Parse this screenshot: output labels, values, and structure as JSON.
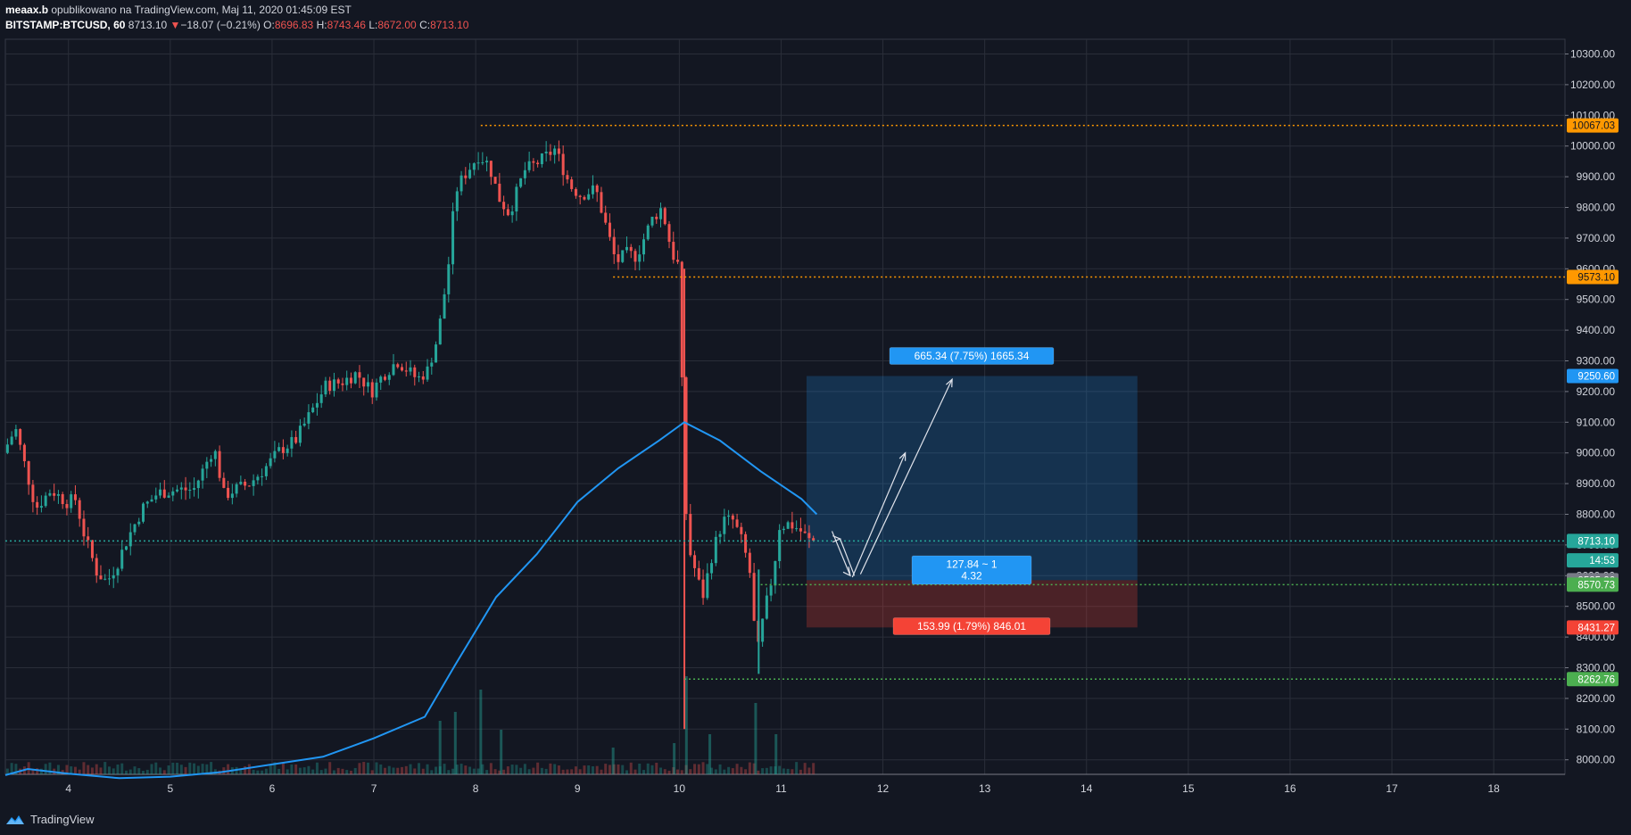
{
  "header": {
    "author": "meaax.b",
    "published": "opublikowano na TradingView.com, Maj 11, 2020 01:45:09 EST",
    "symbol": "BITSTAMP:BTCUSD, 60",
    "last": "8713.10",
    "change_arrow": "▼",
    "change": "−18.07 (−0.21%)",
    "o_label": "O:",
    "o": "8696.83",
    "h_label": "H:",
    "h": "8743.46",
    "l_label": "L:",
    "l": "8672.00",
    "c_label": "C:",
    "c": "8713.10"
  },
  "footer": {
    "brand": "TradingView"
  },
  "colors": {
    "background": "#131722",
    "grid": "#2a2e39",
    "up": "#26a69a",
    "down": "#ef5350",
    "ma": "#2196f3",
    "orange": "#ff9800",
    "green_label": "#4caf50",
    "red_label": "#f44336",
    "blue_label": "#2196f3",
    "current_label": "#26a69a"
  },
  "chart_data": {
    "type": "candlestick",
    "symbol": "BITSTAMP:BTCUSD",
    "interval": "60",
    "x_ticks": [
      "4",
      "5",
      "6",
      "7",
      "8",
      "9",
      "10",
      "11",
      "12",
      "13",
      "14",
      "15",
      "16",
      "17",
      "18"
    ],
    "y_ticks": [
      "10300.00",
      "10200.00",
      "10100.00",
      "10000.00",
      "9900.00",
      "9800.00",
      "9700.00",
      "9600.00",
      "9500.00",
      "9400.00",
      "9300.00",
      "9200.00",
      "9100.00",
      "9000.00",
      "8900.00",
      "8800.00",
      "8700.00",
      "8600.00",
      "8500.00",
      "8400.00",
      "8300.00",
      "8200.00",
      "8100.00",
      "8000.00"
    ],
    "ylim": [
      7920,
      10320
    ],
    "xlim": [
      3.38,
      18.7
    ],
    "price_path": [
      [
        3.38,
        9000
      ],
      [
        3.5,
        9080
      ],
      [
        3.6,
        8950
      ],
      [
        3.7,
        8820
      ],
      [
        3.85,
        8880
      ],
      [
        4.0,
        8840
      ],
      [
        4.1,
        8850
      ],
      [
        4.15,
        8760
      ],
      [
        4.3,
        8610
      ],
      [
        4.4,
        8580
      ],
      [
        4.5,
        8640
      ],
      [
        4.6,
        8720
      ],
      [
        4.75,
        8820
      ],
      [
        4.9,
        8870
      ],
      [
        5.1,
        8880
      ],
      [
        5.25,
        8880
      ],
      [
        5.35,
        8950
      ],
      [
        5.45,
        9020
      ],
      [
        5.55,
        8860
      ],
      [
        5.65,
        8880
      ],
      [
        5.8,
        8900
      ],
      [
        5.95,
        8950
      ],
      [
        6.1,
        9010
      ],
      [
        6.25,
        9040
      ],
      [
        6.4,
        9130
      ],
      [
        6.55,
        9220
      ],
      [
        6.7,
        9230
      ],
      [
        6.85,
        9260
      ],
      [
        7.0,
        9200
      ],
      [
        7.1,
        9250
      ],
      [
        7.25,
        9300
      ],
      [
        7.45,
        9240
      ],
      [
        7.55,
        9270
      ],
      [
        7.65,
        9380
      ],
      [
        7.75,
        9600
      ],
      [
        7.82,
        9850
      ],
      [
        7.9,
        9900
      ],
      [
        8.05,
        9970
      ],
      [
        8.15,
        9940
      ],
      [
        8.25,
        9830
      ],
      [
        8.35,
        9780
      ],
      [
        8.5,
        9920
      ],
      [
        8.65,
        9950
      ],
      [
        8.8,
        9990
      ],
      [
        8.95,
        9870
      ],
      [
        9.05,
        9840
      ],
      [
        9.2,
        9860
      ],
      [
        9.3,
        9740
      ],
      [
        9.4,
        9620
      ],
      [
        9.5,
        9650
      ],
      [
        9.6,
        9640
      ],
      [
        9.75,
        9760
      ],
      [
        9.85,
        9800
      ],
      [
        9.95,
        9650
      ],
      [
        10.03,
        9600
      ],
      [
        10.05,
        9150
      ],
      [
        10.1,
        8700
      ],
      [
        10.15,
        8650
      ],
      [
        10.25,
        8530
      ],
      [
        10.35,
        8680
      ],
      [
        10.45,
        8780
      ],
      [
        10.55,
        8780
      ],
      [
        10.65,
        8700
      ],
      [
        10.72,
        8600
      ],
      [
        10.78,
        8330
      ],
      [
        10.85,
        8470
      ],
      [
        10.95,
        8620
      ],
      [
        11.0,
        8760
      ],
      [
        11.1,
        8770
      ],
      [
        11.2,
        8750
      ],
      [
        11.3,
        8713
      ]
    ],
    "moving_average": [
      [
        3.38,
        8870
      ],
      [
        3.6,
        8890
      ],
      [
        4.0,
        8875
      ],
      [
        4.5,
        8860
      ],
      [
        5.0,
        8865
      ],
      [
        5.5,
        8880
      ],
      [
        6.0,
        8905
      ],
      [
        6.5,
        8930
      ],
      [
        7.0,
        8990
      ],
      [
        7.5,
        9060
      ],
      [
        7.8,
        9230
      ],
      [
        8.2,
        9450
      ],
      [
        8.6,
        9590
      ],
      [
        9.0,
        9760
      ],
      [
        9.4,
        9870
      ],
      [
        9.8,
        9960
      ],
      [
        10.05,
        10020
      ],
      [
        10.4,
        9960
      ],
      [
        10.8,
        9860
      ],
      [
        11.2,
        9770
      ],
      [
        11.35,
        9720
      ]
    ],
    "volume_spikes": [
      [
        7.65,
        60
      ],
      [
        7.8,
        70
      ],
      [
        8.05,
        95
      ],
      [
        8.25,
        50
      ],
      [
        9.35,
        30
      ],
      [
        9.95,
        35
      ],
      [
        10.07,
        110
      ],
      [
        10.3,
        45
      ],
      [
        10.75,
        80
      ],
      [
        10.95,
        45
      ]
    ],
    "horizontal_levels": [
      {
        "price": 10067.03,
        "label": "10067.03",
        "color": "#ff9800",
        "from_x": 8.05
      },
      {
        "price": 9573.1,
        "label": "9573.10",
        "color": "#ff9800",
        "from_x": 9.35
      },
      {
        "price": 8713.1,
        "label": "8713.10",
        "color": "#26a69a",
        "from_x": 3.38
      },
      {
        "price": 8570.73,
        "label": "8570.73",
        "color": "#4caf50",
        "from_x": 10.8
      },
      {
        "price": 8262.76,
        "label": "8262.76",
        "color": "#4caf50",
        "from_x": 10.05
      }
    ],
    "axis_labels": [
      {
        "price": 10067.03,
        "text": "10067.03",
        "bg": "#ff9800",
        "fg": "#131722"
      },
      {
        "price": 9573.1,
        "text": "9573.10",
        "bg": "#ff9800",
        "fg": "#131722"
      },
      {
        "price": 9250.6,
        "text": "9250.60",
        "bg": "#2196f3",
        "fg": "#ffffff"
      },
      {
        "price": 8713.1,
        "text": "8713.10",
        "bg": "#26a69a",
        "fg": "#ffffff"
      },
      {
        "price": 8650.0,
        "text": "14:53",
        "bg": "#26a69a",
        "fg": "#ffffff"
      },
      {
        "price": 8585.26,
        "text": "8585.26",
        "bg": "#787b86",
        "fg": "#ffffff"
      },
      {
        "price": 8570.73,
        "text": "8570.73",
        "bg": "#4caf50",
        "fg": "#ffffff"
      },
      {
        "price": 8431.27,
        "text": "8431.27",
        "bg": "#f44336",
        "fg": "#ffffff"
      },
      {
        "price": 8262.76,
        "text": "8262.76",
        "bg": "#4caf50",
        "fg": "#ffffff"
      }
    ],
    "long_position": {
      "x_from": 11.25,
      "x_to": 14.5,
      "entry": 8585.26,
      "target": 9250.6,
      "stop": 8431.27,
      "target_text": "665.34 (7.75%) 1665.34",
      "ratio_text_1": "127.84 ~ 1",
      "ratio_text_2": "4.32",
      "stop_text": "153.99 (1.79%) 846.01"
    },
    "annotation_arrows": [
      [
        [
          11.72,
          8600
        ],
        [
          11.58,
          8720
        ],
        [
          11.58,
          8720
        ]
      ],
      [
        [
          11.7,
          8595
        ],
        [
          12.22,
          9000
        ]
      ],
      [
        [
          11.78,
          8605
        ],
        [
          12.68,
          9240
        ]
      ]
    ]
  }
}
